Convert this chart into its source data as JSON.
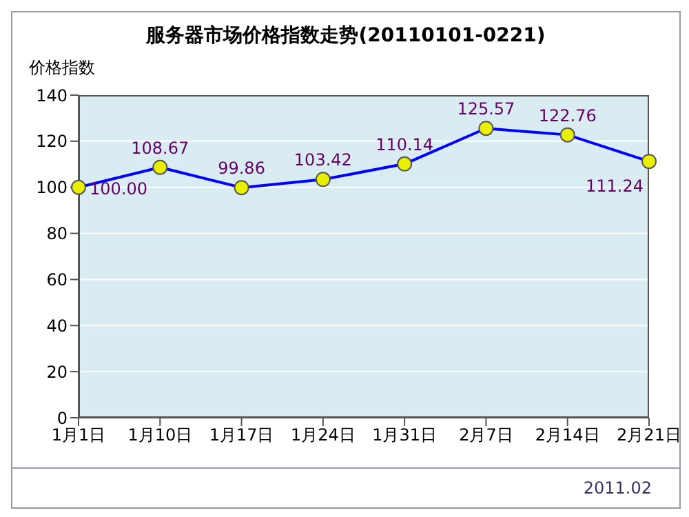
{
  "chart_data": {
    "type": "line",
    "title": "服务器市场价格指数走势(20110101-0221)",
    "ylabel": "价格指数",
    "categories": [
      "1月1日",
      "1月10日",
      "1月17日",
      "1月24日",
      "1月31日",
      "2月7日",
      "2月14日",
      "2月21日"
    ],
    "series": [
      {
        "color": "#0000ff",
        "values": [
          100.0,
          108.67,
          99.86,
          103.42,
          110.14,
          125.57,
          122.76,
          111.24
        ]
      }
    ],
    "value_labels": [
      "100.00",
      "108.67",
      "99.86",
      "103.42",
      "110.14",
      "125.57",
      "122.76",
      "111.24"
    ],
    "ylim": [
      0,
      140
    ],
    "yticks": [
      0,
      20,
      40,
      60,
      80,
      100,
      120,
      140
    ],
    "grid": "y",
    "marker": "circle",
    "annotations": [
      "2011.02"
    ]
  }
}
